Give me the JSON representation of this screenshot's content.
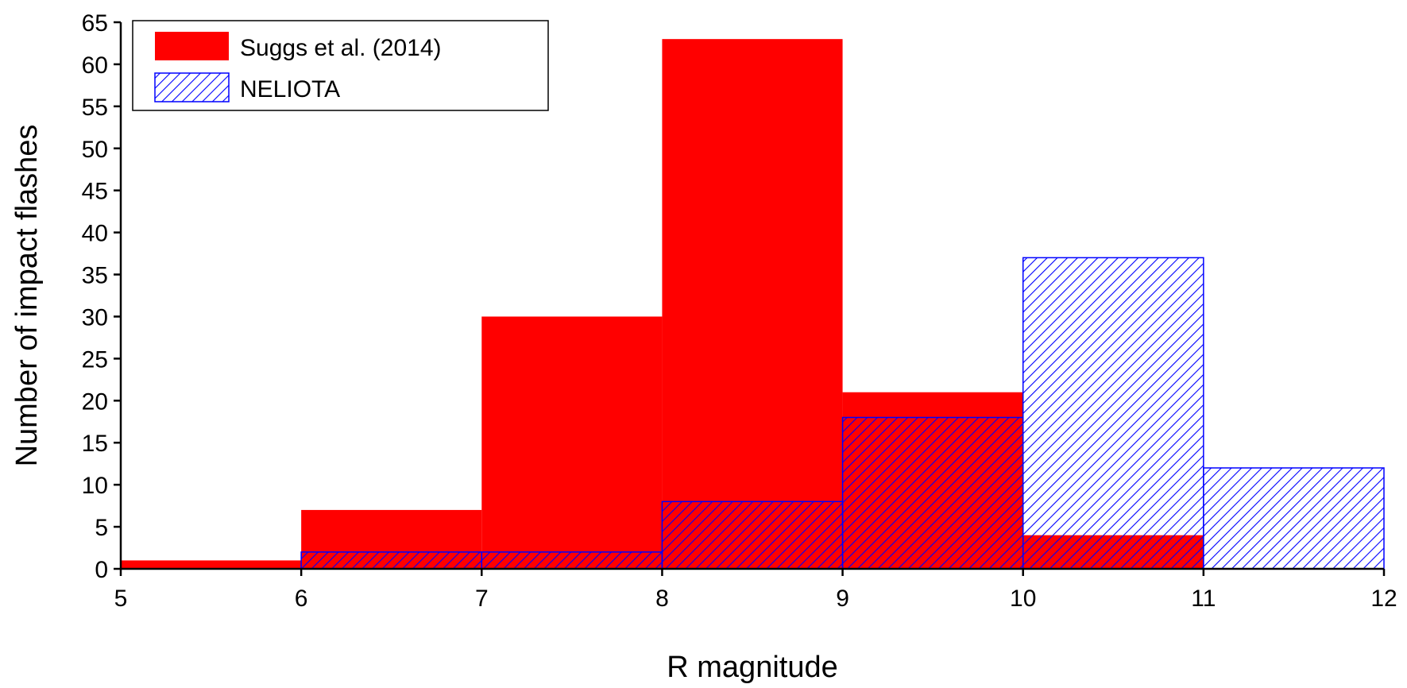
{
  "chart_data": {
    "type": "bar",
    "subtype": "histogram",
    "xlabel": "R magnitude",
    "ylabel": "Number of impact flashes",
    "xlim": [
      5,
      12
    ],
    "ylim": [
      0,
      65
    ],
    "x_ticks": [
      5,
      6,
      7,
      8,
      9,
      10,
      11,
      12
    ],
    "y_ticks": [
      0,
      5,
      10,
      15,
      20,
      25,
      30,
      35,
      40,
      45,
      50,
      55,
      60,
      65
    ],
    "bins": [
      [
        5,
        6
      ],
      [
        6,
        7
      ],
      [
        7,
        8
      ],
      [
        8,
        9
      ],
      [
        9,
        10
      ],
      [
        10,
        11
      ],
      [
        11,
        12
      ]
    ],
    "grid": false,
    "legend_position": "top-left",
    "series": [
      {
        "name": "Suggs et al. (2014)",
        "values": [
          1,
          7,
          30,
          63,
          21,
          4,
          0
        ],
        "color": "#ff0000",
        "fill": "solid"
      },
      {
        "name": "NELIOTA",
        "values": [
          0,
          2,
          2,
          8,
          18,
          37,
          12
        ],
        "color": "#0000ff",
        "fill": "hatched"
      }
    ]
  }
}
